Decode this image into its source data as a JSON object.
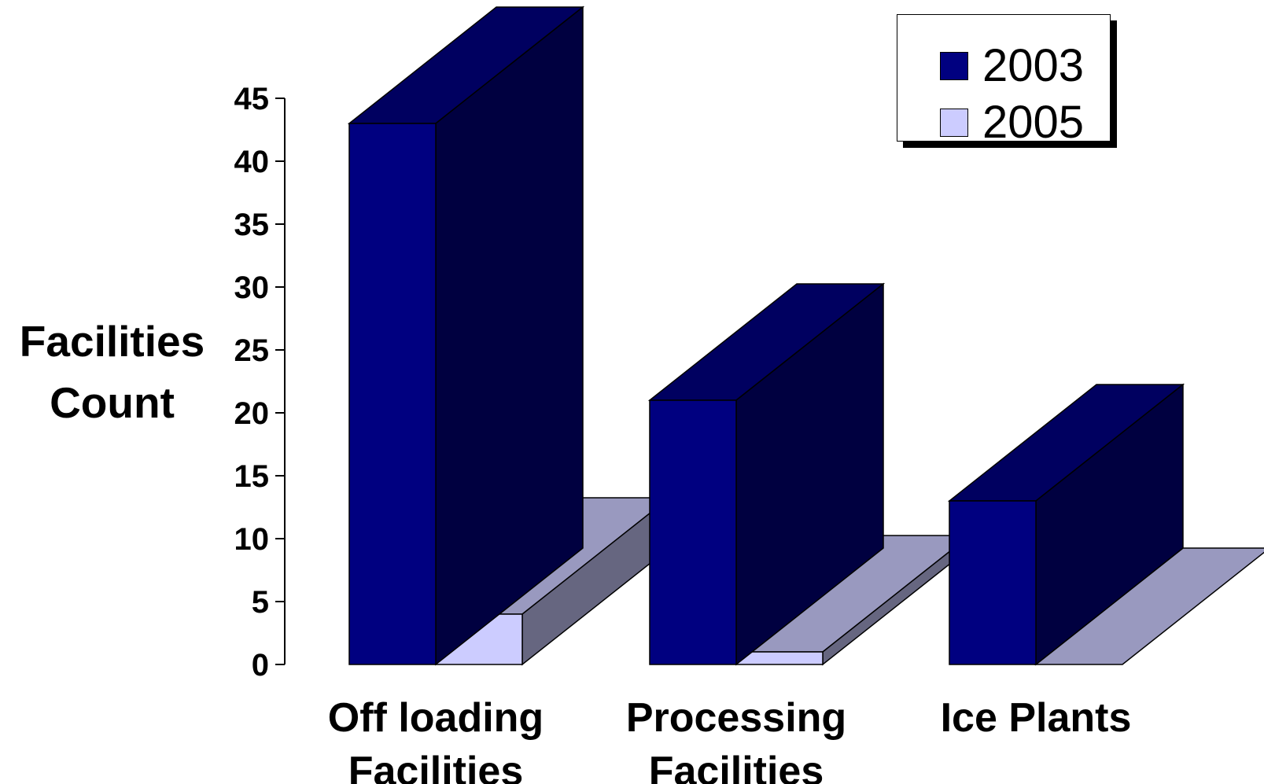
{
  "chart_data": {
    "type": "bar",
    "title": "",
    "xlabel": "",
    "ylabel": [
      "Facilities",
      "Count"
    ],
    "categories": [
      [
        "Off loading",
        "Facilities"
      ],
      [
        "Processing",
        "Facilities"
      ],
      [
        "Ice Plants"
      ]
    ],
    "series": [
      {
        "name": "2003",
        "values": [
          43,
          21,
          13
        ]
      },
      {
        "name": "2005",
        "values": [
          4,
          1,
          0
        ]
      }
    ],
    "ylim": [
      0,
      45
    ],
    "yticks": [
      "0",
      "5",
      "10",
      "15",
      "20",
      "25",
      "30",
      "35",
      "40",
      "45"
    ],
    "legend_position": "top-right",
    "grid": false,
    "three_d": true,
    "colors": {
      "2003": {
        "front": "#000080",
        "side": "#000040",
        "top": "#000060"
      },
      "2005": {
        "front": "#ccccff",
        "side": "#666680",
        "top": "#9999bf"
      }
    }
  }
}
